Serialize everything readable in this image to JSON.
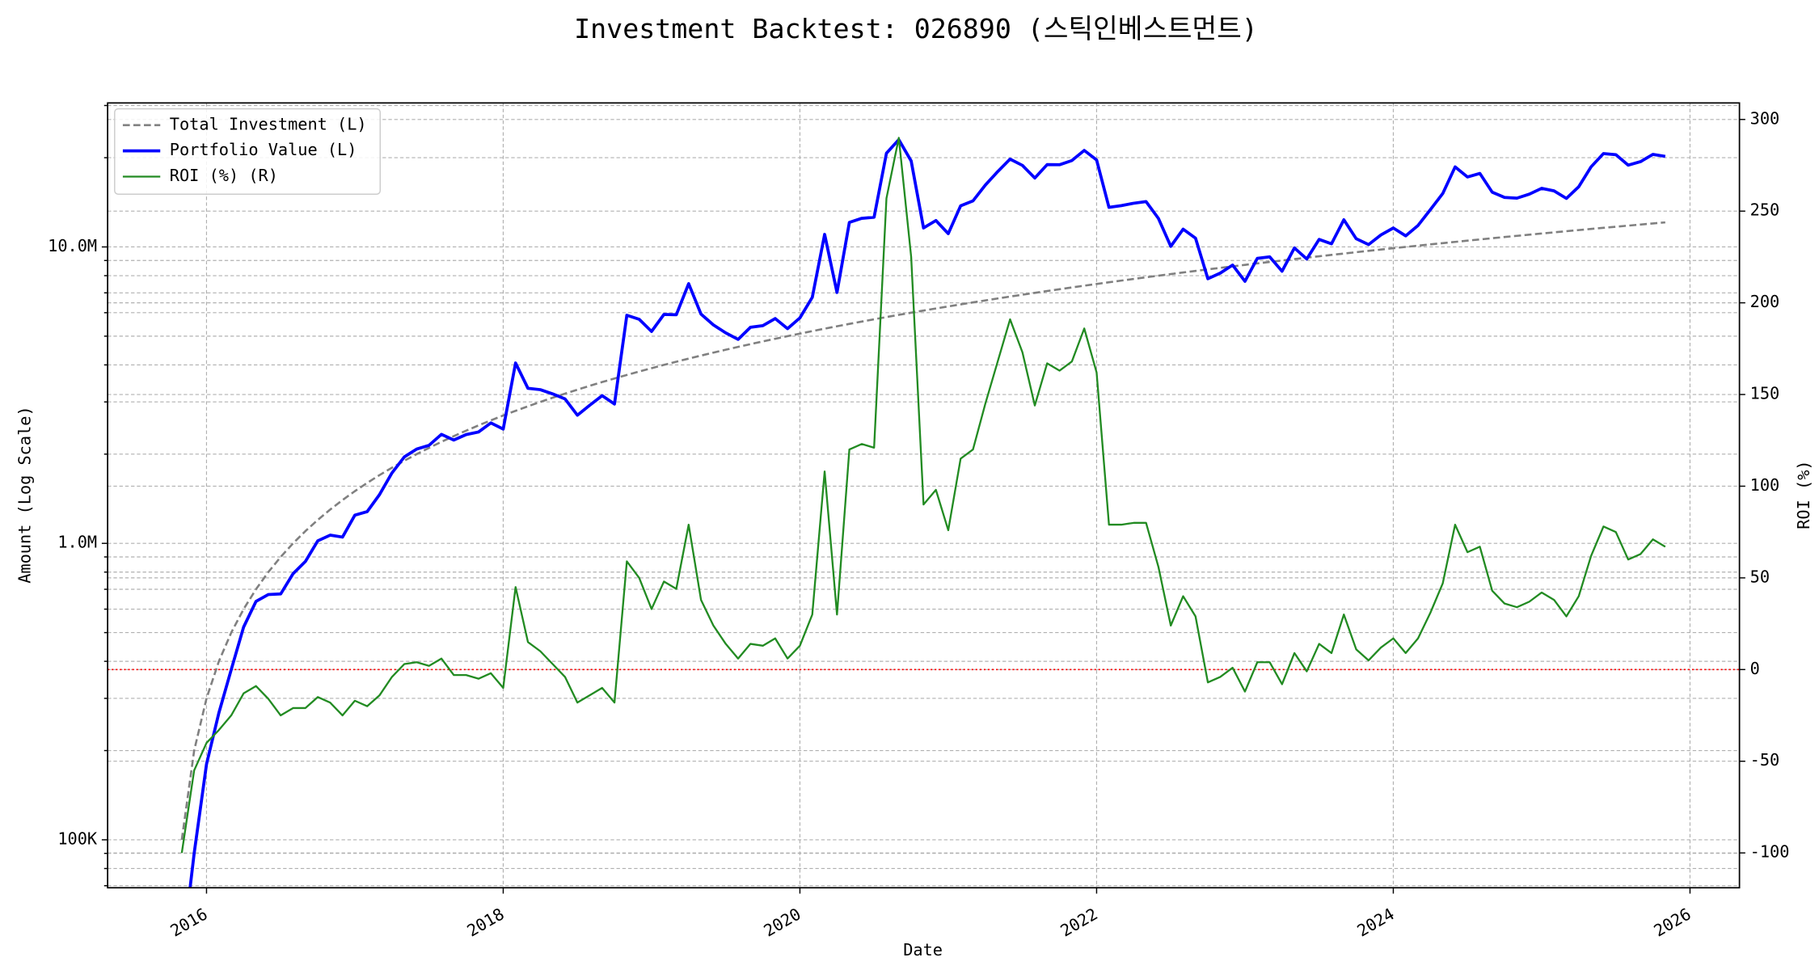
{
  "chart_data": {
    "type": "line",
    "title": "Investment Backtest: 026890 (스틱인베스트먼트)",
    "xlabel": "Date",
    "ylabel": "Amount (Log Scale)",
    "y2label": "ROI (%)",
    "ylabel_color": "#0000cd",
    "y2label_color": "#228b22",
    "yscale": "log",
    "grid": true,
    "legend": "upper left",
    "x": [
      "2015-11",
      "2015-12",
      "2016-01",
      "2016-02",
      "2016-03",
      "2016-04",
      "2016-05",
      "2016-06",
      "2016-07",
      "2016-08",
      "2016-09",
      "2016-10",
      "2016-11",
      "2016-12",
      "2017-01",
      "2017-02",
      "2017-03",
      "2017-04",
      "2017-05",
      "2017-06",
      "2017-07",
      "2017-08",
      "2017-09",
      "2017-10",
      "2017-11",
      "2017-12",
      "2018-01",
      "2018-02",
      "2018-03",
      "2018-04",
      "2018-05",
      "2018-06",
      "2018-07",
      "2018-08",
      "2018-09",
      "2018-10",
      "2018-11",
      "2018-12",
      "2019-01",
      "2019-02",
      "2019-03",
      "2019-04",
      "2019-05",
      "2019-06",
      "2019-07",
      "2019-08",
      "2019-09",
      "2019-10",
      "2019-11",
      "2019-12",
      "2020-01",
      "2020-02",
      "2020-03",
      "2020-04",
      "2020-05",
      "2020-06",
      "2020-07",
      "2020-08",
      "2020-09",
      "2020-10",
      "2020-11",
      "2020-12",
      "2021-01",
      "2021-02",
      "2021-03",
      "2021-04",
      "2021-05",
      "2021-06",
      "2021-07",
      "2021-08",
      "2021-09",
      "2021-10",
      "2021-11",
      "2021-12",
      "2022-01",
      "2022-02",
      "2022-03",
      "2022-04",
      "2022-05",
      "2022-06",
      "2022-07",
      "2022-08",
      "2022-09",
      "2022-10",
      "2022-11",
      "2022-12",
      "2023-01",
      "2023-02",
      "2023-03",
      "2023-04",
      "2023-05",
      "2023-06",
      "2023-07",
      "2023-08",
      "2023-09",
      "2023-10",
      "2023-11",
      "2023-12",
      "2024-01",
      "2024-02",
      "2024-03",
      "2024-04",
      "2024-05",
      "2024-06",
      "2024-07",
      "2024-08",
      "2024-09",
      "2024-10",
      "2024-11",
      "2024-12",
      "2025-01",
      "2025-02",
      "2025-03",
      "2025-04",
      "2025-05",
      "2025-06",
      "2025-07",
      "2025-08",
      "2025-09",
      "2025-10",
      "2025-11"
    ],
    "xlim": [
      "2015-05",
      "2026-05"
    ],
    "xticks": [
      "2016",
      "2018",
      "2020",
      "2022",
      "2024",
      "2026"
    ],
    "ylim": [
      68900,
      30600000
    ],
    "yticks": [
      {
        "value": 100000,
        "label": "100K"
      },
      {
        "value": 1000000,
        "label": "1.0M"
      },
      {
        "value": 10000000,
        "label": "10.0M"
      }
    ],
    "y2lim": [
      -119,
      309
    ],
    "y2ticks": [
      -100,
      -50,
      0,
      50,
      100,
      150,
      200,
      250,
      300
    ],
    "hline": {
      "axis": "y2",
      "value": 0,
      "color": "#ff0000"
    },
    "series": [
      {
        "name": "Total Investment (L)",
        "color": "#808080",
        "linestyle": "dashed",
        "axis": "y",
        "values": [
          100000,
          200000,
          300000,
          400000,
          500000,
          600000,
          700000,
          800000,
          900000,
          1000000,
          1100000,
          1200000,
          1300000,
          1400000,
          1500000,
          1600000,
          1700000,
          1800000,
          1900000,
          2000000,
          2100000,
          2200000,
          2300000,
          2400000,
          2500000,
          2600000,
          2700000,
          2800000,
          2900000,
          3000000,
          3100000,
          3200000,
          3300000,
          3400000,
          3500000,
          3600000,
          3700000,
          3800000,
          3900000,
          4000000,
          4100000,
          4200000,
          4300000,
          4400000,
          4500000,
          4600000,
          4700000,
          4800000,
          4900000,
          5000000,
          5100000,
          5200000,
          5300000,
          5400000,
          5500000,
          5600000,
          5700000,
          5800000,
          5900000,
          6000000,
          6100000,
          6200000,
          6300000,
          6400000,
          6500000,
          6600000,
          6700000,
          6800000,
          6900000,
          7000000,
          7100000,
          7200000,
          7300000,
          7400000,
          7500000,
          7600000,
          7700000,
          7800000,
          7900000,
          8000000,
          8100000,
          8200000,
          8300000,
          8400000,
          8500000,
          8600000,
          8700000,
          8800000,
          8900000,
          9000000,
          9100000,
          9200000,
          9300000,
          9400000,
          9500000,
          9600000,
          9700000,
          9800000,
          9900000,
          10000000,
          10100000,
          10200000,
          10300000,
          10400000,
          10500000,
          10600000,
          10700000,
          10800000,
          10900000,
          11000000,
          11100000,
          11200000,
          11300000,
          11400000,
          11500000,
          11600000,
          11700000,
          11800000,
          11900000,
          12000000,
          12100000
        ]
      },
      {
        "name": "Portfolio Value (L)",
        "color": "#0000ff",
        "linestyle": "solid",
        "axis": "y",
        "values": [
          0,
          90000,
          180000,
          268000,
          375000,
          522000,
          637000,
          672000,
          675000,
          790000,
          869000,
          1020000,
          1066000,
          1050000,
          1245000,
          1280000,
          1462000,
          1728000,
          1957000,
          2080000,
          2142000,
          2332000,
          2231000,
          2328000,
          2375000,
          2548000,
          2430000,
          4060000,
          3335000,
          3300000,
          3193000,
          3072000,
          2706000,
          2924000,
          3150000,
          2952000,
          5883000,
          5700000,
          5187000,
          5920000,
          5904000,
          7518000,
          5934000,
          5456000,
          5130000,
          4876000,
          5358000,
          5424000,
          5733000,
          5300000,
          5763000,
          6760000,
          11024000,
          7020000,
          12100000,
          12488000,
          12597000,
          20706000,
          23010000,
          19500000,
          11590000,
          12276000,
          11088000,
          13760000,
          14300000,
          16170000,
          17956000,
          19788000,
          18837000,
          17080000,
          18957000,
          18936000,
          19564000,
          21164000,
          19650000,
          13604000,
          13783000,
          14040000,
          14220000,
          12480000,
          10044000,
          11480000,
          10707000,
          7812000,
          8160000,
          8686000,
          7656000,
          9152000,
          9256000,
          8280000,
          9919000,
          9108000,
          10602000,
          10246000,
          12350000,
          10656000,
          10185000,
          10976000,
          11583000,
          10900000,
          11817000,
          13362000,
          15141000,
          18616000,
          17220000,
          17702000,
          15301000,
          14688000,
          14606000,
          15070000,
          15762000,
          15456000,
          14577000,
          15960000,
          18630000,
          20648000,
          20475000,
          18880000,
          19397000,
          20520000,
          20207000
        ]
      },
      {
        "name": "ROI (%) (R)",
        "color": "#228b22",
        "linestyle": "solid",
        "axis": "y2",
        "values": [
          -100,
          -55,
          -40,
          -33,
          -25,
          -13,
          -9,
          -16,
          -25,
          -21,
          -21,
          -15,
          -18,
          -25,
          -17,
          -20,
          -14,
          -4,
          3,
          4,
          2,
          6,
          -3,
          -3,
          -5,
          -2,
          -10,
          45,
          15,
          10,
          3,
          -4,
          -18,
          -14,
          -10,
          -18,
          59,
          50,
          33,
          48,
          44,
          79,
          38,
          24,
          14,
          6,
          14,
          13,
          17,
          6,
          13,
          30,
          108,
          30,
          120,
          123,
          121,
          257,
          290,
          225,
          90,
          98,
          76,
          115,
          120,
          145,
          168,
          191,
          173,
          144,
          167,
          163,
          168,
          186,
          162,
          79,
          79,
          80,
          80,
          56,
          24,
          40,
          29,
          -7,
          -4,
          1,
          -12,
          4,
          4,
          -8,
          9,
          -1,
          14,
          9,
          30,
          11,
          5,
          12,
          17,
          9,
          17,
          31,
          47,
          79,
          64,
          67,
          43,
          36,
          34,
          37,
          42,
          38,
          29,
          40,
          62,
          78,
          75,
          60,
          63,
          71,
          67
        ]
      }
    ]
  }
}
